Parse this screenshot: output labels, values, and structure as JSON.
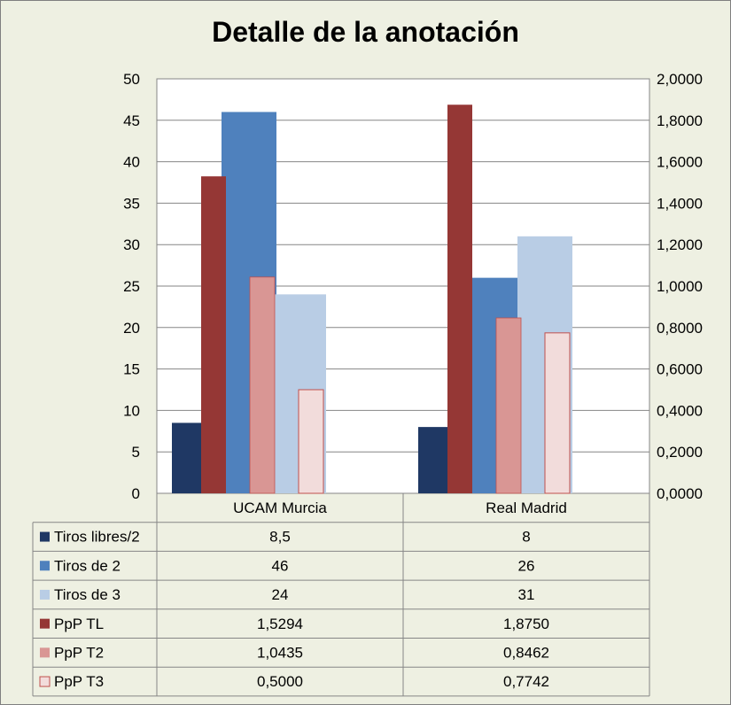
{
  "chart_data": {
    "type": "bar",
    "title": "Detalle de la anotación",
    "categories": [
      "UCAM Murcia",
      "Real Madrid"
    ],
    "series": [
      {
        "name": "Tiros libres/2",
        "axis": "left",
        "values": [
          8.5,
          8
        ],
        "labels": [
          "8,5",
          "8"
        ],
        "color": "#1f3864"
      },
      {
        "name": "Tiros de 2",
        "axis": "left",
        "values": [
          46,
          26
        ],
        "labels": [
          "46",
          "26"
        ],
        "color": "#4f81bd"
      },
      {
        "name": "Tiros de 3",
        "axis": "left",
        "values": [
          24,
          31
        ],
        "labels": [
          "24",
          "31"
        ],
        "color": "#b9cde5"
      },
      {
        "name": "PpP TL",
        "axis": "right",
        "values": [
          1.5294,
          1.875
        ],
        "labels": [
          "1,5294",
          "1,8750"
        ],
        "color": "#953735"
      },
      {
        "name": "PpP T2",
        "axis": "right",
        "values": [
          1.0435,
          0.8462
        ],
        "labels": [
          "1,0435",
          "0,8462"
        ],
        "color": "#d99694"
      },
      {
        "name": "PpP T3",
        "axis": "right",
        "values": [
          0.5,
          0.7742
        ],
        "labels": [
          "0,5000",
          "0,7742"
        ],
        "color": "#f2dcdb"
      }
    ],
    "left_axis": {
      "ylim": [
        0,
        50
      ],
      "ticks": [
        "0",
        "5",
        "10",
        "15",
        "20",
        "25",
        "30",
        "35",
        "40",
        "45",
        "50"
      ]
    },
    "right_axis": {
      "ylim": [
        0,
        2
      ],
      "ticks": [
        "0,0000",
        "0,2000",
        "0,4000",
        "0,6000",
        "0,8000",
        "1,0000",
        "1,2000",
        "1,4000",
        "1,6000",
        "1,8000",
        "2,0000"
      ]
    },
    "grid": true,
    "legend": "data-table"
  }
}
